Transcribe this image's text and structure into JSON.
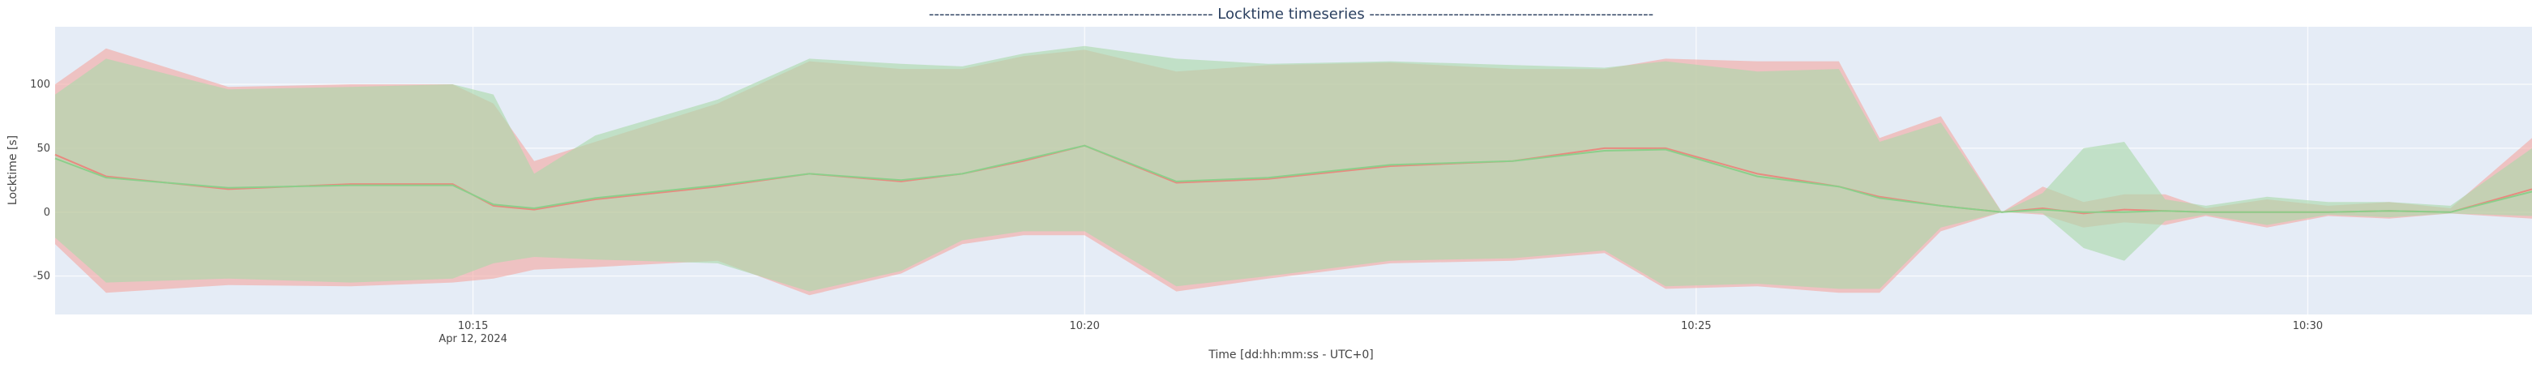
{
  "chart_data": {
    "type": "area",
    "title": "------------------------------------------------------  Locktime timeseries  ------------------------------------------------------",
    "xlabel": "Time [dd:hh:mm:ss - UTC+0]",
    "ylabel": "Locktime [s]",
    "x_range": [
      "10:11:35",
      "10:31:50"
    ],
    "ylim": [
      -80,
      145
    ],
    "x_ticks": [
      {
        "time": "10:15",
        "label": "10:15",
        "sublabel": "Apr 12, 2024"
      },
      {
        "time": "10:20",
        "label": "10:20",
        "sublabel": ""
      },
      {
        "time": "10:25",
        "label": "10:25",
        "sublabel": ""
      },
      {
        "time": "10:30",
        "label": "10:30",
        "sublabel": ""
      }
    ],
    "y_ticks": [
      -50,
      0,
      50,
      100
    ],
    "grid": true,
    "legend": "none",
    "colors": {
      "plot_bg": "#e5ecf6",
      "grid": "#ffffff",
      "band_a": "#f4a6a0",
      "band_b": "#a8d8a8",
      "line_a": "#e88a80",
      "line_b": "#8bcf8b"
    },
    "series": [
      {
        "band": "a",
        "x": [
          "10:11:35",
          "10:12:00",
          "10:13:00",
          "10:14:00",
          "10:14:50",
          "10:15:10",
          "10:15:30",
          "10:16:00",
          "10:17:00",
          "10:17:45",
          "10:18:30",
          "10:19:00",
          "10:19:30",
          "10:20:00",
          "10:20:45",
          "10:21:30",
          "10:22:30",
          "10:23:30",
          "10:24:15",
          "10:24:45",
          "10:25:30",
          "10:26:10",
          "10:26:30",
          "10:27:00",
          "10:27:30",
          "10:27:50",
          "10:28:10",
          "10:28:30",
          "10:28:50",
          "10:29:10",
          "10:29:40",
          "10:30:10",
          "10:30:40",
          "10:31:10",
          "10:31:50"
        ],
        "upper": [
          100,
          128,
          98,
          100,
          100,
          85,
          40,
          55,
          85,
          118,
          112,
          112,
          122,
          127,
          110,
          115,
          117,
          112,
          112,
          120,
          118,
          118,
          58,
          75,
          0,
          20,
          8,
          14,
          14,
          3,
          10,
          5,
          8,
          3,
          58
        ],
        "lower": [
          -25,
          -63,
          -57,
          -58,
          -55,
          -52,
          -45,
          -43,
          -38,
          -65,
          -48,
          -25,
          -18,
          -18,
          -62,
          -52,
          -40,
          -38,
          -32,
          -60,
          -58,
          -63,
          -63,
          -15,
          0,
          -2,
          -12,
          -8,
          -10,
          -3,
          -12,
          -3,
          -5,
          -1,
          -5
        ],
        "mean": [
          45,
          28,
          18,
          22,
          22,
          5,
          2,
          10,
          20,
          30,
          24,
          30,
          40,
          52,
          23,
          26,
          36,
          40,
          50,
          50,
          30,
          20,
          12,
          5,
          0,
          3,
          -1,
          2,
          1,
          0,
          0,
          0,
          1,
          0,
          18
        ]
      },
      {
        "band": "b",
        "x": [
          "10:11:35",
          "10:12:00",
          "10:13:00",
          "10:14:00",
          "10:14:50",
          "10:15:10",
          "10:15:30",
          "10:16:00",
          "10:17:00",
          "10:17:45",
          "10:18:30",
          "10:19:00",
          "10:19:30",
          "10:20:00",
          "10:20:45",
          "10:21:30",
          "10:22:30",
          "10:23:30",
          "10:24:15",
          "10:24:45",
          "10:25:30",
          "10:26:10",
          "10:26:30",
          "10:27:00",
          "10:27:30",
          "10:27:50",
          "10:28:10",
          "10:28:30",
          "10:28:50",
          "10:29:10",
          "10:29:40",
          "10:30:10",
          "10:30:40",
          "10:31:10",
          "10:31:50"
        ],
        "upper": [
          92,
          120,
          96,
          98,
          100,
          92,
          30,
          60,
          88,
          120,
          116,
          114,
          124,
          130,
          120,
          116,
          118,
          115,
          113,
          118,
          110,
          112,
          55,
          70,
          0,
          15,
          50,
          55,
          10,
          5,
          12,
          8,
          8,
          5,
          50
        ],
        "lower": [
          -20,
          -55,
          -52,
          -55,
          -52,
          -40,
          -35,
          -37,
          -40,
          -62,
          -46,
          -22,
          -15,
          -15,
          -58,
          -50,
          -38,
          -36,
          -30,
          -58,
          -56,
          -60,
          -60,
          -12,
          0,
          -1,
          -28,
          -38,
          -7,
          -2,
          -10,
          -2,
          -4,
          -1,
          -3
        ],
        "mean": [
          42,
          27,
          19,
          21,
          21,
          6,
          3,
          11,
          21,
          30,
          25,
          30,
          41,
          52,
          24,
          27,
          37,
          40,
          48,
          49,
          28,
          20,
          11,
          5,
          0,
          2,
          0,
          0,
          1,
          0,
          0,
          0,
          1,
          0,
          16
        ]
      }
    ]
  }
}
